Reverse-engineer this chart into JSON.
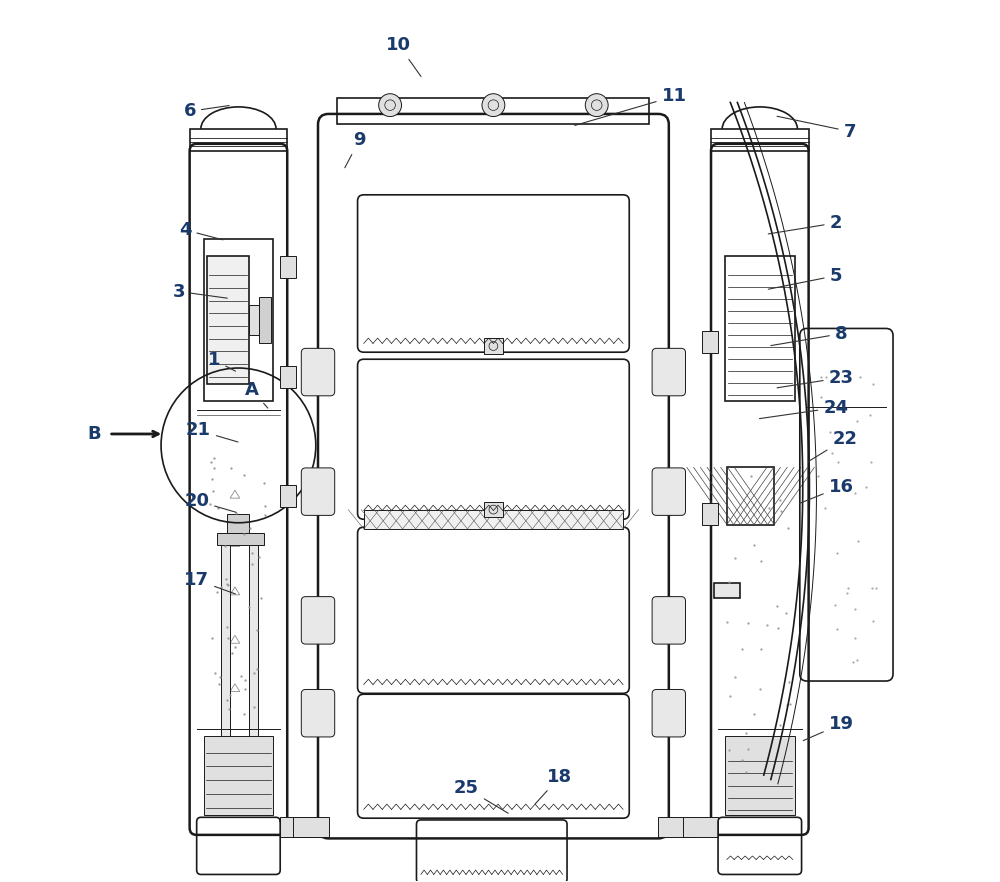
{
  "bg_color": "#ffffff",
  "line_color": "#1a1a1a",
  "label_color": "#1a3a6b",
  "fig_width": 10.0,
  "fig_height": 8.82
}
